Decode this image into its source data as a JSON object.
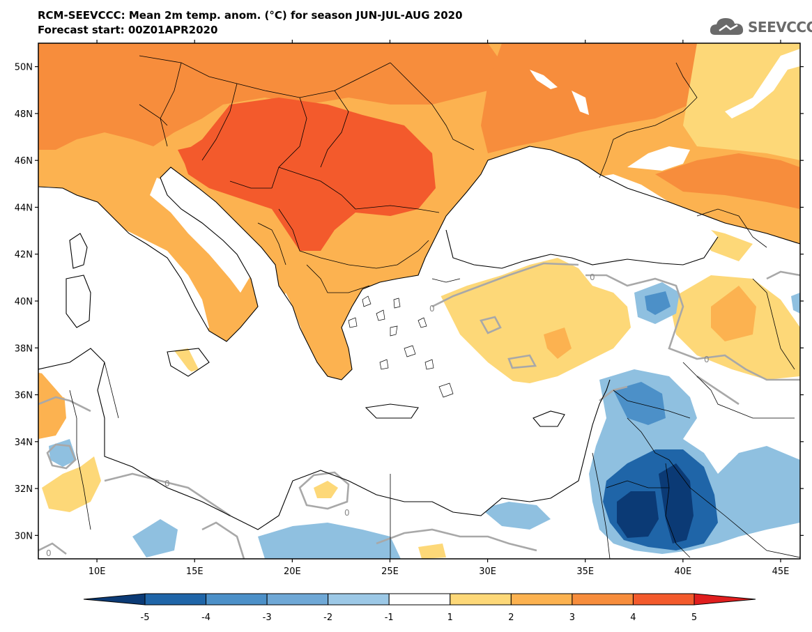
{
  "title": "RCM-SEEVCCC: Mean 2m temp. anom. (°C) for season JUN-JUL-AUG 2020",
  "subtitle": "Forecast start: 00Z01APR2020",
  "logo": {
    "text": "SEEVCCC",
    "icon": "cloud-icon"
  },
  "map": {
    "lon_range": [
      7,
      46
    ],
    "lat_range": [
      29,
      51
    ],
    "lat_ticks": [
      "50N",
      "48N",
      "46N",
      "44N",
      "42N",
      "40N",
      "38N",
      "36N",
      "34N",
      "32N",
      "30N"
    ],
    "lon_ticks": [
      "10E",
      "15E",
      "20E",
      "25E",
      "30E",
      "35E",
      "40E",
      "45E"
    ],
    "contour_label": "0",
    "colors": {
      "neg5": "#0b3a75",
      "neg4": "#1f65a8",
      "neg3": "#4c90c8",
      "neg2": "#8fc0e0",
      "neg1": "#b9d8ee",
      "zero": "#ffffff",
      "pos1": "#fdd878",
      "pos2": "#fcb250",
      "pos3": "#f78d3c",
      "pos4": "#f35a2c",
      "pos5": "#e01e1e",
      "contour": "#a8a8a8"
    }
  },
  "colorbar": {
    "labels": [
      "-5",
      "-4",
      "-3",
      "-2",
      "-1",
      "1",
      "2",
      "3",
      "4",
      "5"
    ],
    "colors": [
      "#0b3a75",
      "#1f65a8",
      "#4c90c8",
      "#6fa8d6",
      "#9cc8e6",
      "#ffffff",
      "#fdd878",
      "#fcb250",
      "#f78d3c",
      "#f35a2c",
      "#e01e1e"
    ]
  }
}
